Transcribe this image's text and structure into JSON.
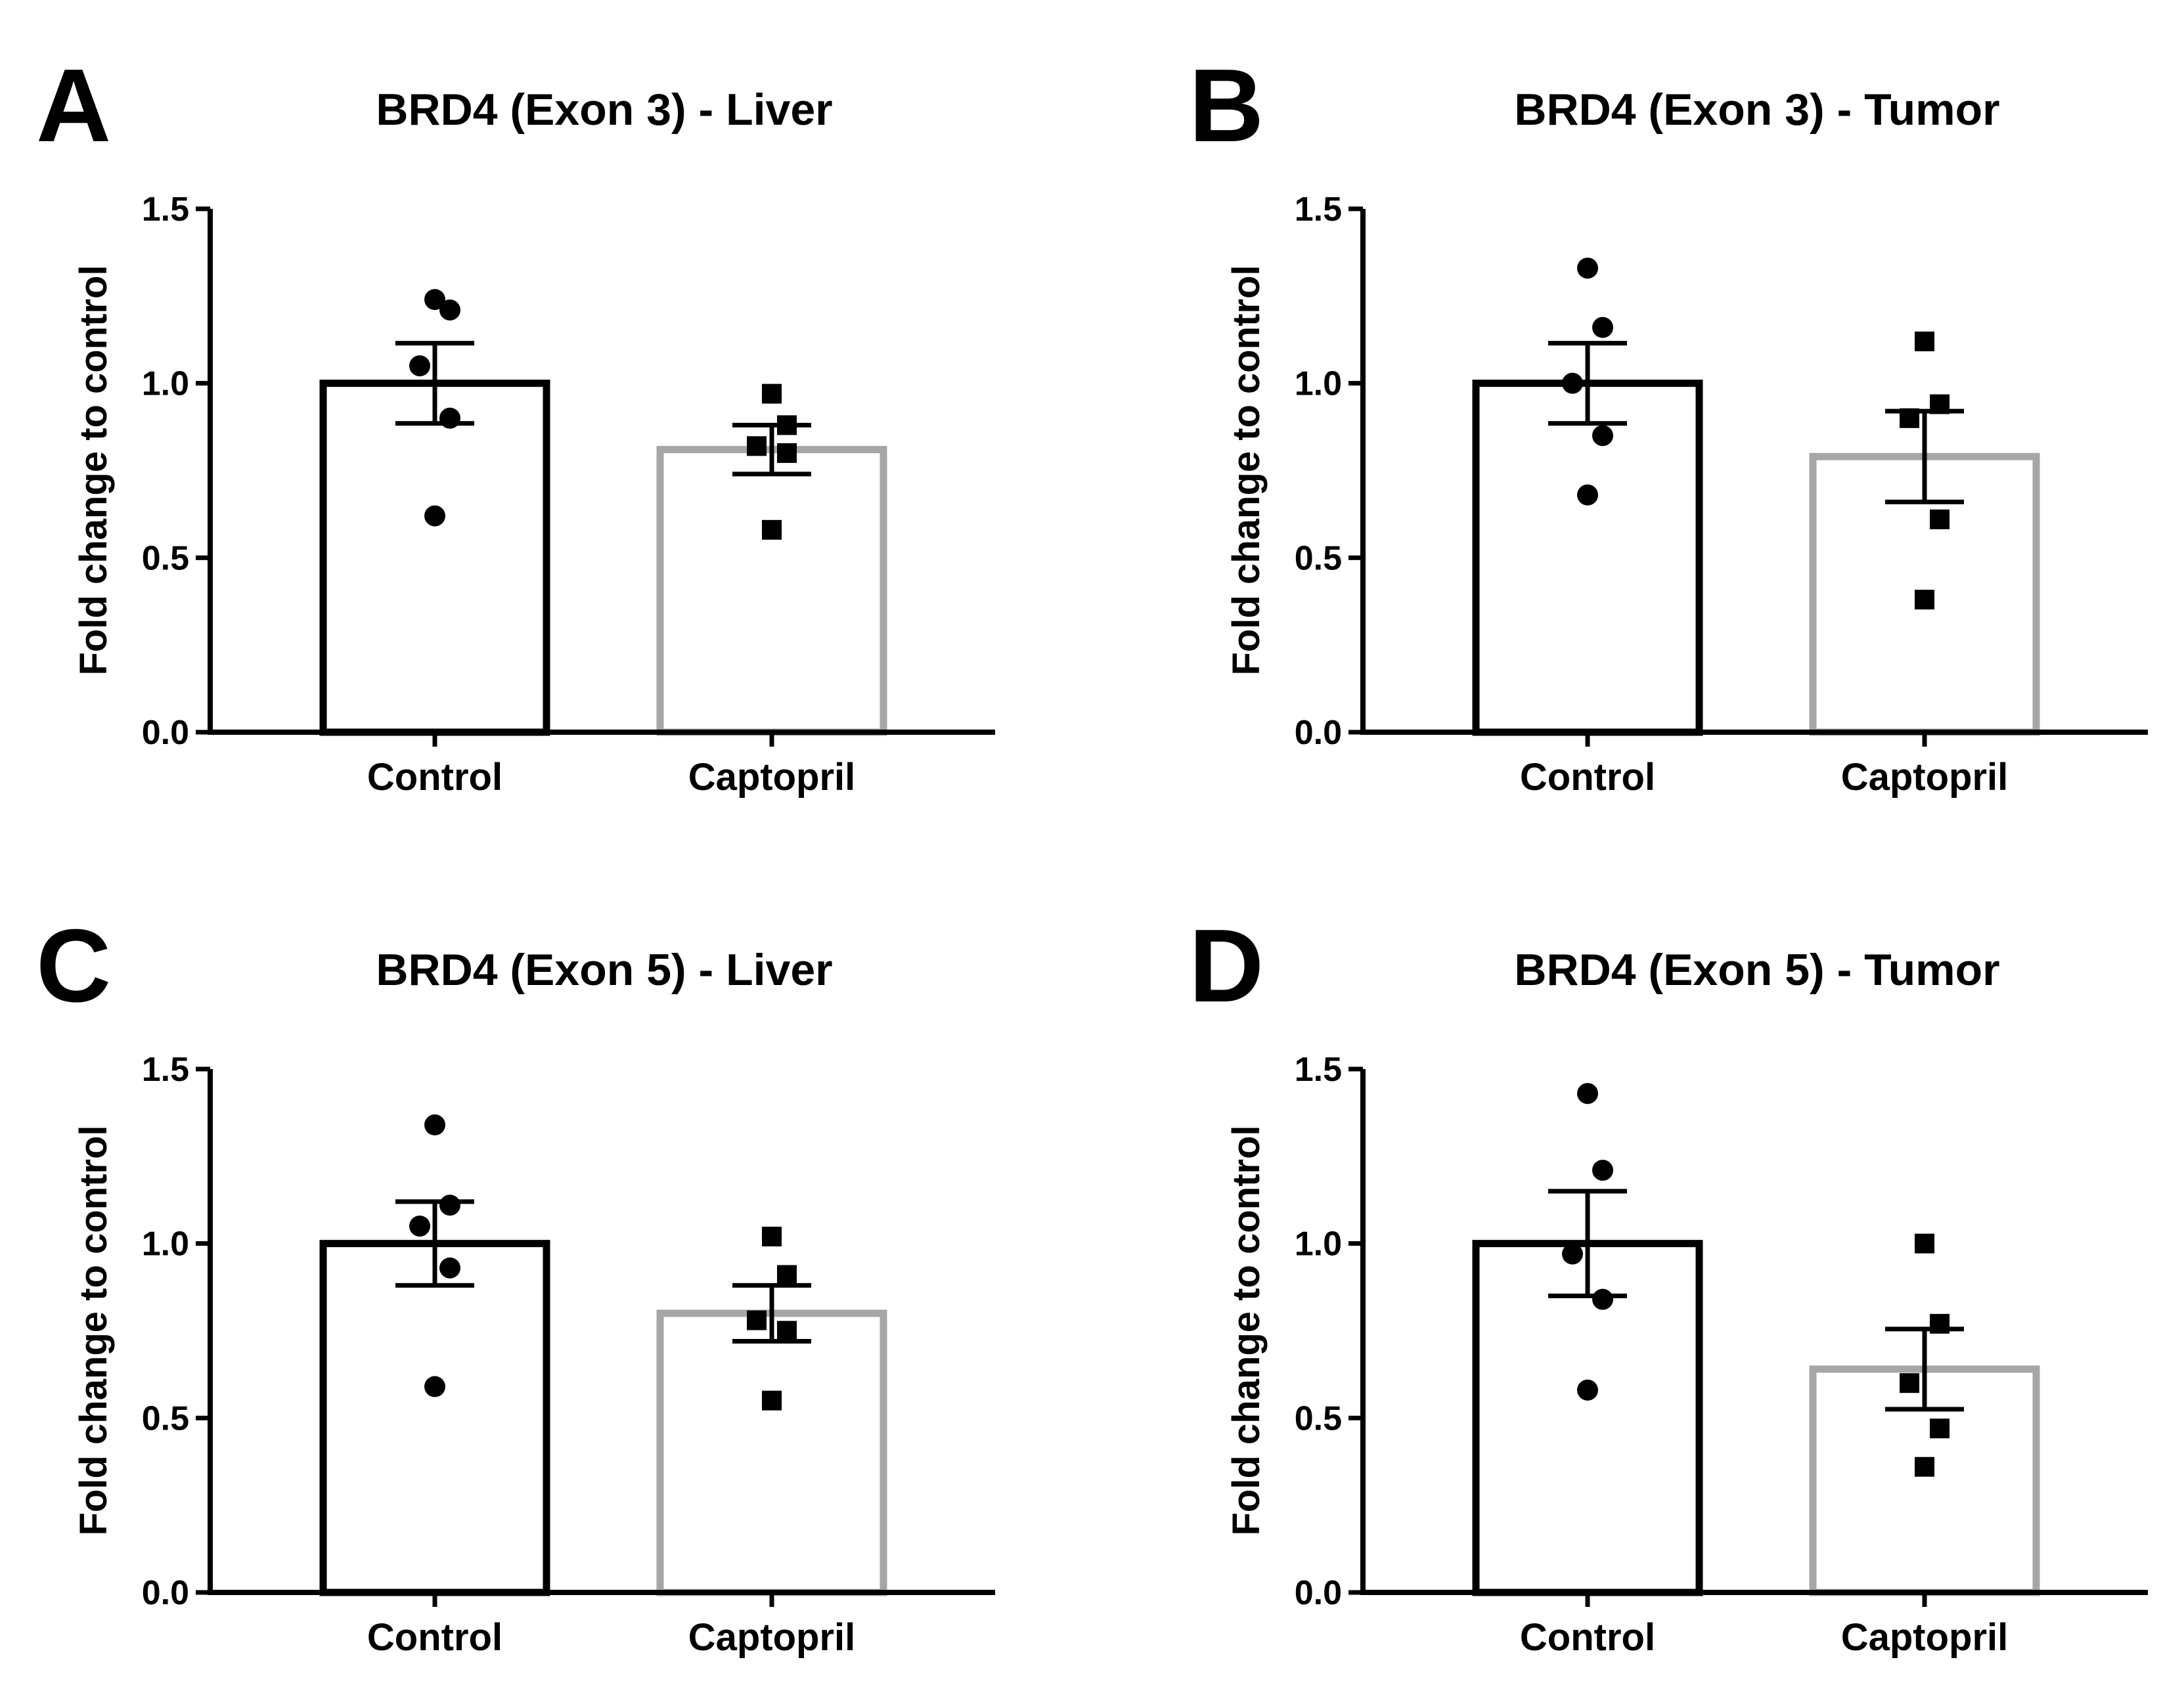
{
  "figure": {
    "panels": [
      "A",
      "B",
      "C",
      "D"
    ]
  },
  "chart_data": [
    {
      "type": "bar",
      "panel": "A",
      "title": "BRD4 (Exon 3) - Liver",
      "xlabel": "",
      "ylabel": "Fold change to control",
      "ylim": [
        0,
        1.5
      ],
      "yticks": [
        "0.0",
        "0.5",
        "1.0",
        "1.5"
      ],
      "categories": [
        "Control",
        "Captopril"
      ],
      "values": [
        1.0,
        0.81
      ],
      "sem": [
        0.115,
        0.07
      ],
      "bar_colors": [
        "#000000",
        "#a6a6a6"
      ],
      "marker_shapes": [
        "circle",
        "square"
      ],
      "points": [
        [
          1.24,
          1.21,
          1.05,
          0.9,
          0.62
        ],
        [
          0.97,
          0.88,
          0.82,
          0.8,
          0.58
        ]
      ]
    },
    {
      "type": "bar",
      "panel": "B",
      "title": "BRD4 (Exon 3) - Tumor",
      "xlabel": "",
      "ylabel": "Fold change to control",
      "ylim": [
        0,
        1.5
      ],
      "yticks": [
        "0.0",
        "0.5",
        "1.0",
        "1.5"
      ],
      "categories": [
        "Control",
        "Captopril"
      ],
      "values": [
        1.0,
        0.79
      ],
      "sem": [
        0.115,
        0.13
      ],
      "bar_colors": [
        "#000000",
        "#a6a6a6"
      ],
      "marker_shapes": [
        "circle",
        "square"
      ],
      "points": [
        [
          1.33,
          1.16,
          1.0,
          0.85,
          0.68
        ],
        [
          1.12,
          0.94,
          0.9,
          0.61,
          0.38
        ]
      ]
    },
    {
      "type": "bar",
      "panel": "C",
      "title": "BRD4 (Exon 5) - Liver",
      "xlabel": "",
      "ylabel": "Fold change to control",
      "ylim": [
        0,
        1.5
      ],
      "yticks": [
        "0.0",
        "0.5",
        "1.0",
        "1.5"
      ],
      "categories": [
        "Control",
        "Captopril"
      ],
      "values": [
        1.0,
        0.8
      ],
      "sem": [
        0.12,
        0.08
      ],
      "bar_colors": [
        "#000000",
        "#a6a6a6"
      ],
      "marker_shapes": [
        "circle",
        "square"
      ],
      "points": [
        [
          1.34,
          1.11,
          1.05,
          0.93,
          0.59
        ],
        [
          1.02,
          0.91,
          0.78,
          0.75,
          0.55
        ]
      ]
    },
    {
      "type": "bar",
      "panel": "D",
      "title": "BRD4 (Exon 5) - Tumor",
      "xlabel": "",
      "ylabel": "Fold change to control",
      "ylim": [
        0,
        1.5
      ],
      "yticks": [
        "0.0",
        "0.5",
        "1.0",
        "1.5"
      ],
      "categories": [
        "Control",
        "Captopril"
      ],
      "values": [
        1.0,
        0.64
      ],
      "sem": [
        0.15,
        0.115
      ],
      "bar_colors": [
        "#000000",
        "#a6a6a6"
      ],
      "marker_shapes": [
        "circle",
        "square"
      ],
      "points": [
        [
          1.43,
          1.21,
          0.97,
          0.84,
          0.58
        ],
        [
          1.0,
          0.77,
          0.6,
          0.47,
          0.36
        ]
      ]
    }
  ]
}
